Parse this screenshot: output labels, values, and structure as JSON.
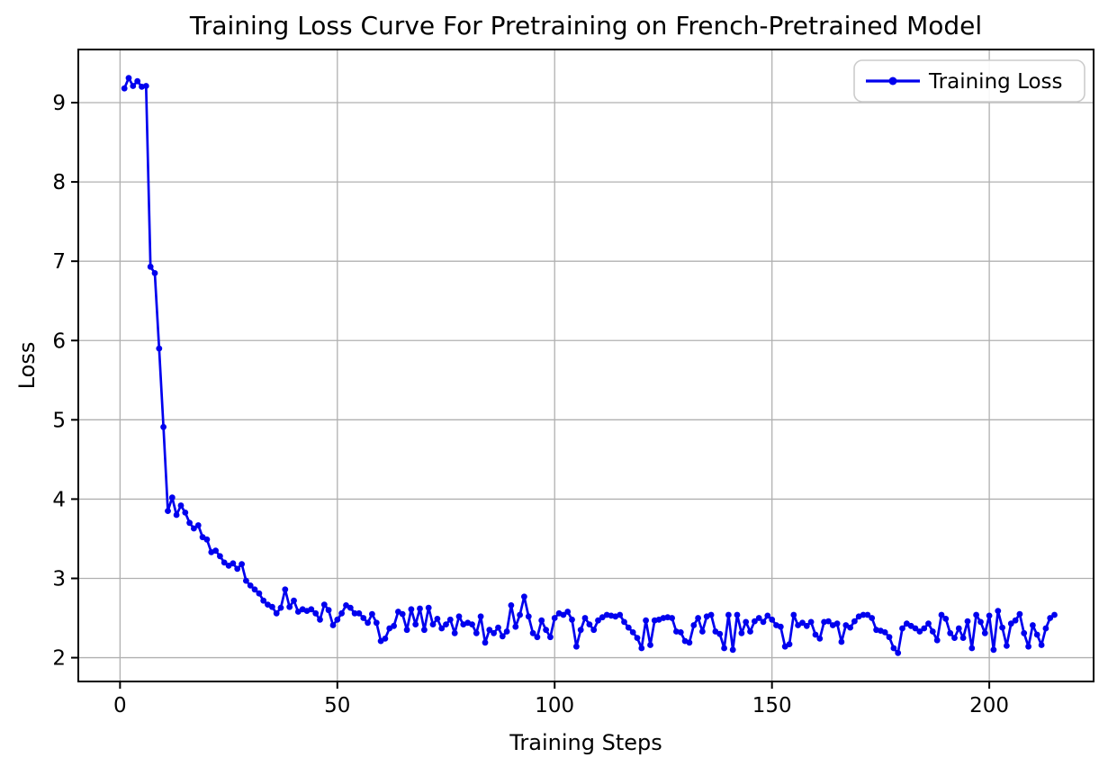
{
  "figure": {
    "title": "Training Loss Curve For Pretraining on French-Pretrained Model",
    "xlabel": "Training Steps",
    "ylabel": "Loss",
    "legend": {
      "label": "Training Loss",
      "position": "upper right"
    }
  },
  "chart_data": {
    "type": "line",
    "title": "Training Loss Curve For Pretraining on French-Pretrained Model",
    "xlabel": "Training Steps",
    "ylabel": "Loss",
    "legend": [
      "Training Loss"
    ],
    "legend_position": "upper right",
    "grid": true,
    "line_color": "#0000ee",
    "marker": "circle",
    "grid_color": "#b0b0b0",
    "spine_color": "#000000",
    "background_color": "#ffffff",
    "x_ticks": [
      0,
      50,
      100,
      150,
      200
    ],
    "y_ticks": [
      2,
      3,
      4,
      5,
      6,
      7,
      8,
      9
    ],
    "xlim": [
      -9.6,
      224.0
    ],
    "ylim": [
      1.7,
      9.67
    ],
    "series": [
      {
        "name": "Training Loss",
        "x_start": 1,
        "x_step": 1,
        "values": [
          9.18,
          9.31,
          9.21,
          9.27,
          9.2,
          9.21,
          6.93,
          6.85,
          5.9,
          4.91,
          3.85,
          4.02,
          3.8,
          3.92,
          3.83,
          3.7,
          3.63,
          3.67,
          3.52,
          3.49,
          3.33,
          3.35,
          3.28,
          3.2,
          3.16,
          3.19,
          3.12,
          3.18,
          2.97,
          2.91,
          2.86,
          2.81,
          2.72,
          2.67,
          2.64,
          2.56,
          2.63,
          2.86,
          2.64,
          2.72,
          2.58,
          2.61,
          2.59,
          2.61,
          2.56,
          2.48,
          2.67,
          2.6,
          2.41,
          2.48,
          2.56,
          2.66,
          2.63,
          2.56,
          2.56,
          2.5,
          2.44,
          2.55,
          2.44,
          2.21,
          2.24,
          2.37,
          2.4,
          2.58,
          2.55,
          2.35,
          2.61,
          2.42,
          2.62,
          2.35,
          2.63,
          2.42,
          2.49,
          2.37,
          2.42,
          2.48,
          2.31,
          2.52,
          2.42,
          2.44,
          2.42,
          2.31,
          2.52,
          2.19,
          2.35,
          2.31,
          2.38,
          2.27,
          2.33,
          2.66,
          2.39,
          2.54,
          2.77,
          2.52,
          2.31,
          2.26,
          2.47,
          2.35,
          2.26,
          2.5,
          2.56,
          2.54,
          2.58,
          2.48,
          2.14,
          2.35,
          2.5,
          2.42,
          2.35,
          2.47,
          2.51,
          2.54,
          2.53,
          2.52,
          2.54,
          2.45,
          2.38,
          2.32,
          2.25,
          2.12,
          2.47,
          2.16,
          2.47,
          2.48,
          2.5,
          2.51,
          2.5,
          2.33,
          2.32,
          2.21,
          2.19,
          2.41,
          2.5,
          2.33,
          2.52,
          2.54,
          2.33,
          2.3,
          2.12,
          2.54,
          2.1,
          2.54,
          2.31,
          2.45,
          2.33,
          2.46,
          2.5,
          2.45,
          2.53,
          2.48,
          2.41,
          2.39,
          2.14,
          2.17,
          2.54,
          2.41,
          2.44,
          2.4,
          2.45,
          2.29,
          2.24,
          2.45,
          2.46,
          2.41,
          2.43,
          2.2,
          2.41,
          2.38,
          2.46,
          2.52,
          2.54,
          2.54,
          2.5,
          2.35,
          2.34,
          2.32,
          2.26,
          2.12,
          2.06,
          2.37,
          2.43,
          2.4,
          2.37,
          2.33,
          2.37,
          2.43,
          2.33,
          2.22,
          2.54,
          2.49,
          2.31,
          2.25,
          2.37,
          2.25,
          2.46,
          2.12,
          2.54,
          2.45,
          2.31,
          2.53,
          2.1,
          2.59,
          2.38,
          2.15,
          2.43,
          2.47,
          2.55,
          2.31,
          2.14,
          2.41,
          2.29,
          2.16,
          2.37,
          2.5,
          2.54
        ]
      }
    ]
  }
}
